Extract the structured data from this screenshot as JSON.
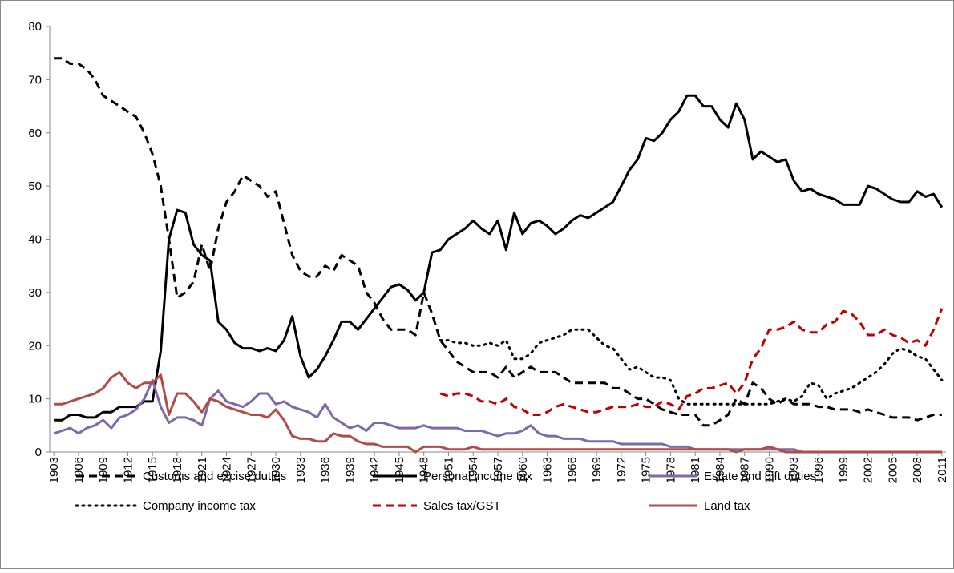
{
  "chart_data": {
    "type": "line",
    "x": [
      1903,
      1904,
      1905,
      1906,
      1907,
      1908,
      1909,
      1910,
      1911,
      1912,
      1913,
      1914,
      1915,
      1916,
      1917,
      1918,
      1919,
      1920,
      1921,
      1922,
      1923,
      1924,
      1925,
      1926,
      1927,
      1928,
      1929,
      1930,
      1931,
      1932,
      1933,
      1934,
      1935,
      1936,
      1937,
      1938,
      1939,
      1940,
      1941,
      1942,
      1943,
      1944,
      1945,
      1946,
      1947,
      1948,
      1949,
      1950,
      1951,
      1952,
      1953,
      1954,
      1955,
      1956,
      1957,
      1958,
      1959,
      1960,
      1961,
      1962,
      1963,
      1964,
      1965,
      1966,
      1967,
      1968,
      1969,
      1970,
      1971,
      1972,
      1973,
      1974,
      1975,
      1976,
      1977,
      1978,
      1979,
      1980,
      1981,
      1982,
      1983,
      1984,
      1985,
      1986,
      1987,
      1988,
      1989,
      1990,
      1991,
      1992,
      1993,
      1994,
      1995,
      1996,
      1997,
      1998,
      1999,
      2000,
      2001,
      2002,
      2003,
      2004,
      2005,
      2006,
      2007,
      2008,
      2009,
      2010,
      2011
    ],
    "xlim": [
      1902.5,
      2011.5
    ],
    "xticks": [
      1903,
      1906,
      1909,
      1912,
      1915,
      1918,
      1921,
      1924,
      1927,
      1930,
      1933,
      1936,
      1939,
      1942,
      1945,
      1948,
      1951,
      1954,
      1957,
      1960,
      1963,
      1966,
      1969,
      1972,
      1975,
      1978,
      1981,
      1984,
      1987,
      1990,
      1993,
      1996,
      1999,
      2002,
      2005,
      2008,
      2011
    ],
    "ylim": [
      0,
      80
    ],
    "yticks": [
      0,
      10,
      20,
      30,
      40,
      50,
      60,
      70,
      80
    ],
    "series": [
      {
        "name": "Customs and excise duties",
        "color": "#000000",
        "dash": "dashed",
        "values": [
          74,
          74,
          73,
          73,
          72,
          70,
          67,
          66,
          65,
          64,
          63,
          60,
          56,
          50,
          40,
          29,
          30,
          32,
          39,
          34,
          42,
          47,
          49,
          52,
          51,
          50,
          48,
          49,
          43,
          37,
          34,
          33,
          33,
          35,
          34,
          37,
          36,
          35,
          30,
          28,
          25,
          23,
          23,
          23,
          22,
          30,
          26,
          21,
          19,
          17,
          16,
          15,
          15,
          15,
          14,
          16,
          14,
          15,
          16,
          15,
          15,
          15,
          14,
          13,
          13,
          13,
          13,
          13,
          12,
          12,
          11,
          10,
          10,
          9,
          8,
          7.5,
          7,
          7,
          7,
          5,
          5,
          6,
          7,
          10,
          9,
          13,
          12,
          10,
          9,
          10,
          9,
          9,
          9,
          8.5,
          8.5,
          8,
          8,
          8,
          7.5,
          8,
          7.5,
          7,
          6.5,
          6.5,
          6.5,
          6,
          6.5,
          7,
          7
        ]
      },
      {
        "name": "Personal income tax",
        "color": "#000000",
        "dash": "solid",
        "values": [
          6,
          6,
          7,
          7,
          6.5,
          6.5,
          7.5,
          7.5,
          8.5,
          8.5,
          8.5,
          9.5,
          9.5,
          19,
          40,
          45.5,
          45,
          39,
          37,
          36,
          24.5,
          23,
          20.5,
          19.5,
          19.5,
          19,
          19.5,
          19,
          21,
          25.5,
          18,
          14,
          15.5,
          18,
          21,
          24.5,
          24.5,
          23,
          25,
          27,
          29,
          31,
          31.5,
          30.5,
          28.5,
          30,
          37.5,
          38,
          40,
          41,
          42,
          43.5,
          42,
          41,
          43.5,
          38,
          45,
          41,
          43,
          43.5,
          42.5,
          41,
          42,
          43.5,
          44.5,
          44,
          45,
          46,
          47,
          50,
          53,
          55,
          59,
          58.5,
          60,
          62.5,
          64,
          67,
          67,
          65,
          65,
          62.5,
          61,
          65.5,
          62.5,
          55,
          56.5,
          55.5,
          54.5,
          55,
          51,
          49,
          49.5,
          48.5,
          48,
          47.5,
          46.5,
          46.5,
          46.5,
          50,
          49.5,
          48.5,
          47.5,
          47,
          47,
          49,
          48,
          48.5,
          46
        ]
      },
      {
        "name": "Estate and gift duties",
        "color": "#7f68a8",
        "dash": "solid",
        "values": [
          3.5,
          4,
          4.5,
          3.5,
          4.5,
          5,
          6,
          4.5,
          6.5,
          7,
          8,
          10,
          13.5,
          8.5,
          5.5,
          6.5,
          6.5,
          6,
          5,
          10,
          11.5,
          9.5,
          9,
          8.5,
          9.5,
          11,
          11,
          9,
          9.5,
          8.5,
          8,
          7.5,
          6.5,
          9,
          6.5,
          5.5,
          4.5,
          5,
          4,
          5.5,
          5.5,
          5,
          4.5,
          4.5,
          4.5,
          5,
          4.5,
          4.5,
          4.5,
          4.5,
          4,
          4,
          4,
          3.5,
          3,
          3.5,
          3.5,
          4,
          5,
          3.5,
          3,
          3,
          2.5,
          2.5,
          2.5,
          2,
          2,
          2,
          2,
          1.5,
          1.5,
          1.5,
          1.5,
          1.5,
          1.5,
          1,
          1,
          1,
          0.5,
          0.5,
          0.5,
          0.5,
          0.5,
          0.5,
          0.5,
          0.5,
          0.5,
          0.5,
          0.5,
          0.5,
          0.5,
          0,
          0,
          0,
          0,
          0,
          0,
          0,
          0,
          0,
          0,
          0,
          0,
          0,
          0,
          0,
          0,
          0,
          0
        ]
      },
      {
        "name": "Company income tax",
        "color": "#000000",
        "dash": "dotted",
        "values": [
          null,
          null,
          null,
          null,
          null,
          null,
          null,
          null,
          null,
          null,
          null,
          null,
          null,
          null,
          null,
          null,
          null,
          null,
          null,
          null,
          null,
          null,
          null,
          null,
          null,
          null,
          null,
          null,
          null,
          null,
          null,
          null,
          null,
          null,
          null,
          null,
          null,
          null,
          null,
          null,
          null,
          null,
          null,
          null,
          null,
          null,
          null,
          21,
          21,
          20.5,
          20.5,
          20,
          20,
          20.5,
          20,
          21,
          17.5,
          17.5,
          18.5,
          20.5,
          21,
          21.5,
          22,
          23,
          23,
          23,
          21.5,
          20,
          19.5,
          17.5,
          15.5,
          16,
          15,
          14,
          14,
          13.5,
          10,
          9,
          9,
          9,
          9,
          9,
          9,
          9,
          9,
          9,
          9,
          9,
          9.5,
          10,
          9.5,
          10.5,
          13,
          12.5,
          10,
          11,
          11.5,
          12,
          13,
          14,
          15,
          16.5,
          18.5,
          19.5,
          19,
          18,
          17.5,
          15.5,
          13.5
        ]
      },
      {
        "name": "Sales tax/GST",
        "color": "#c00000",
        "dash": "dashed",
        "values": [
          null,
          null,
          null,
          null,
          null,
          null,
          null,
          null,
          null,
          null,
          null,
          null,
          null,
          null,
          null,
          null,
          null,
          null,
          null,
          null,
          null,
          null,
          null,
          null,
          null,
          null,
          null,
          null,
          null,
          null,
          null,
          null,
          null,
          null,
          null,
          null,
          null,
          null,
          null,
          null,
          null,
          null,
          null,
          null,
          null,
          null,
          null,
          11,
          10.5,
          11,
          11,
          10.5,
          9.5,
          9.5,
          9,
          10,
          8.5,
          8,
          7,
          7,
          7.5,
          8.5,
          9,
          8.5,
          8,
          7.5,
          7.5,
          8,
          8.5,
          8.5,
          8.5,
          9,
          8.5,
          8.5,
          9.5,
          9,
          8,
          10.5,
          11,
          12,
          12,
          12.5,
          13,
          11,
          13,
          17.5,
          19.5,
          23,
          23,
          23.5,
          24.5,
          23,
          22.5,
          22.5,
          24,
          24.5,
          26.5,
          26,
          24.5,
          22,
          22,
          23,
          22,
          21.5,
          20.5,
          21,
          20,
          23,
          27
        ]
      },
      {
        "name": "Land tax",
        "color": "#b04c47",
        "dash": "solid",
        "values": [
          9,
          9,
          9.5,
          10,
          10.5,
          11,
          12,
          14,
          15,
          13,
          12,
          13,
          13,
          14.5,
          7,
          11,
          11,
          9.5,
          7.5,
          10,
          9.5,
          8.5,
          8,
          7.5,
          7,
          7,
          6.5,
          8,
          6,
          3,
          2.5,
          2.5,
          2,
          2,
          3.5,
          3,
          3,
          2,
          1.5,
          1.5,
          1,
          1,
          1,
          1,
          0,
          1,
          1,
          1,
          0.5,
          0.5,
          0.5,
          1,
          0.5,
          0.5,
          0.5,
          0.5,
          0.5,
          0.5,
          0.5,
          0.5,
          0.5,
          0.5,
          0.5,
          0.5,
          0.5,
          0.5,
          0.5,
          0.5,
          0.5,
          0.5,
          0.5,
          0.5,
          0.5,
          0.5,
          0.5,
          0.5,
          0.5,
          0.5,
          0.5,
          0.5,
          0.5,
          0.5,
          0.5,
          0,
          0.5,
          0.5,
          0.5,
          1,
          0.5,
          0,
          0,
          0,
          0,
          0,
          0,
          0,
          0,
          0,
          0,
          0,
          0,
          0,
          0,
          0,
          0,
          0,
          0,
          0,
          0
        ]
      }
    ]
  }
}
